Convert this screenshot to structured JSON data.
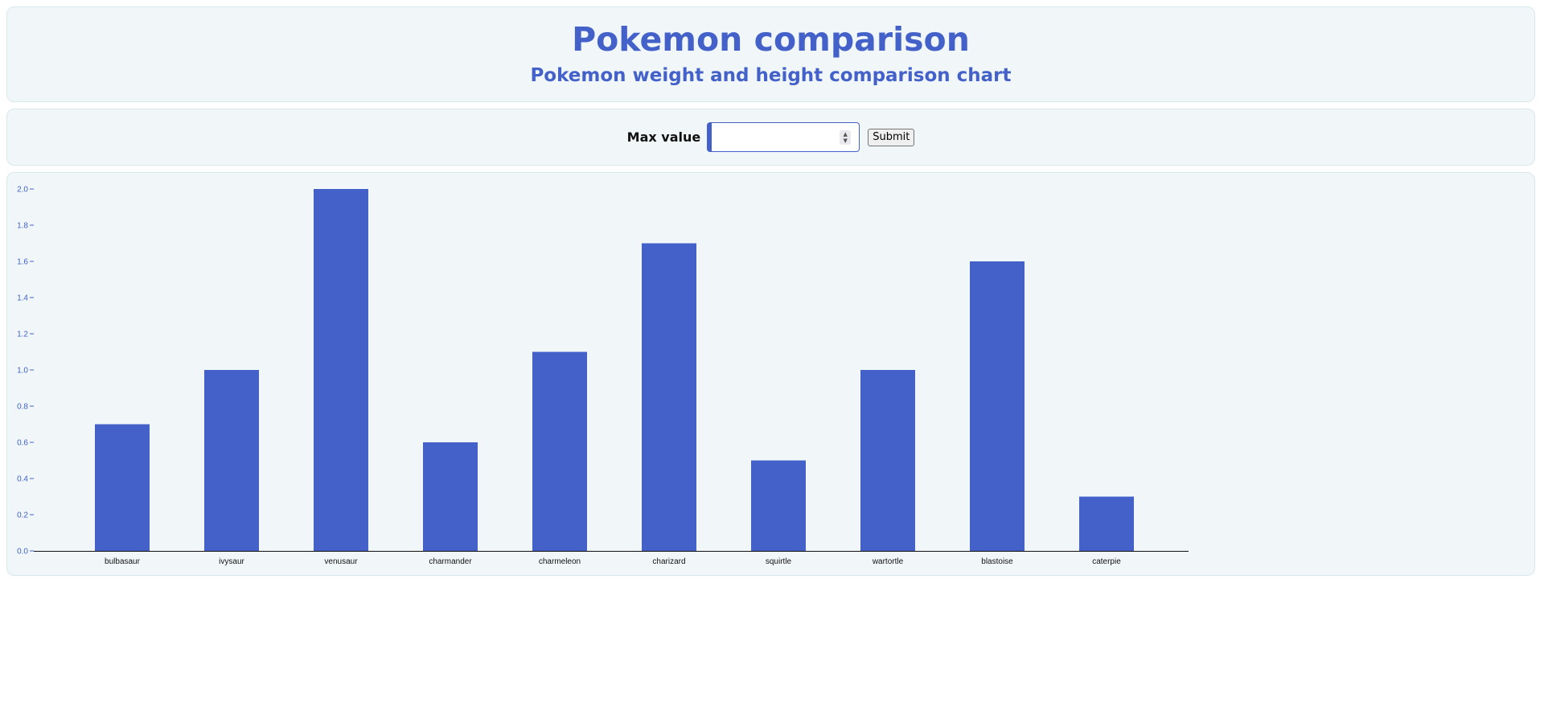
{
  "header": {
    "title": "Pokemon comparison",
    "subtitle": "Pokemon weight and height comparison chart"
  },
  "controls": {
    "max_label": "Max value",
    "max_value": "",
    "submit_label": "Submit"
  },
  "colors": {
    "accent": "#4361c8",
    "panel_bg": "#f1f7f9",
    "axis": "#111111"
  },
  "chart_data": {
    "type": "bar",
    "categories": [
      "bulbasaur",
      "ivysaur",
      "venusaur",
      "charmander",
      "charmeleon",
      "charizard",
      "squirtle",
      "wartortle",
      "blastoise",
      "caterpie"
    ],
    "values": [
      0.7,
      1.0,
      2.0,
      0.6,
      1.1,
      1.7,
      0.5,
      1.0,
      1.6,
      0.3
    ],
    "ylim": [
      0,
      2.0
    ],
    "yticks": [
      "0.0",
      "0.2",
      "0.4",
      "0.6",
      "0.8",
      "1.0",
      "1.2",
      "1.4",
      "1.6",
      "1.8",
      "2.0"
    ],
    "grid": false,
    "bar_color": "#4361c8"
  }
}
